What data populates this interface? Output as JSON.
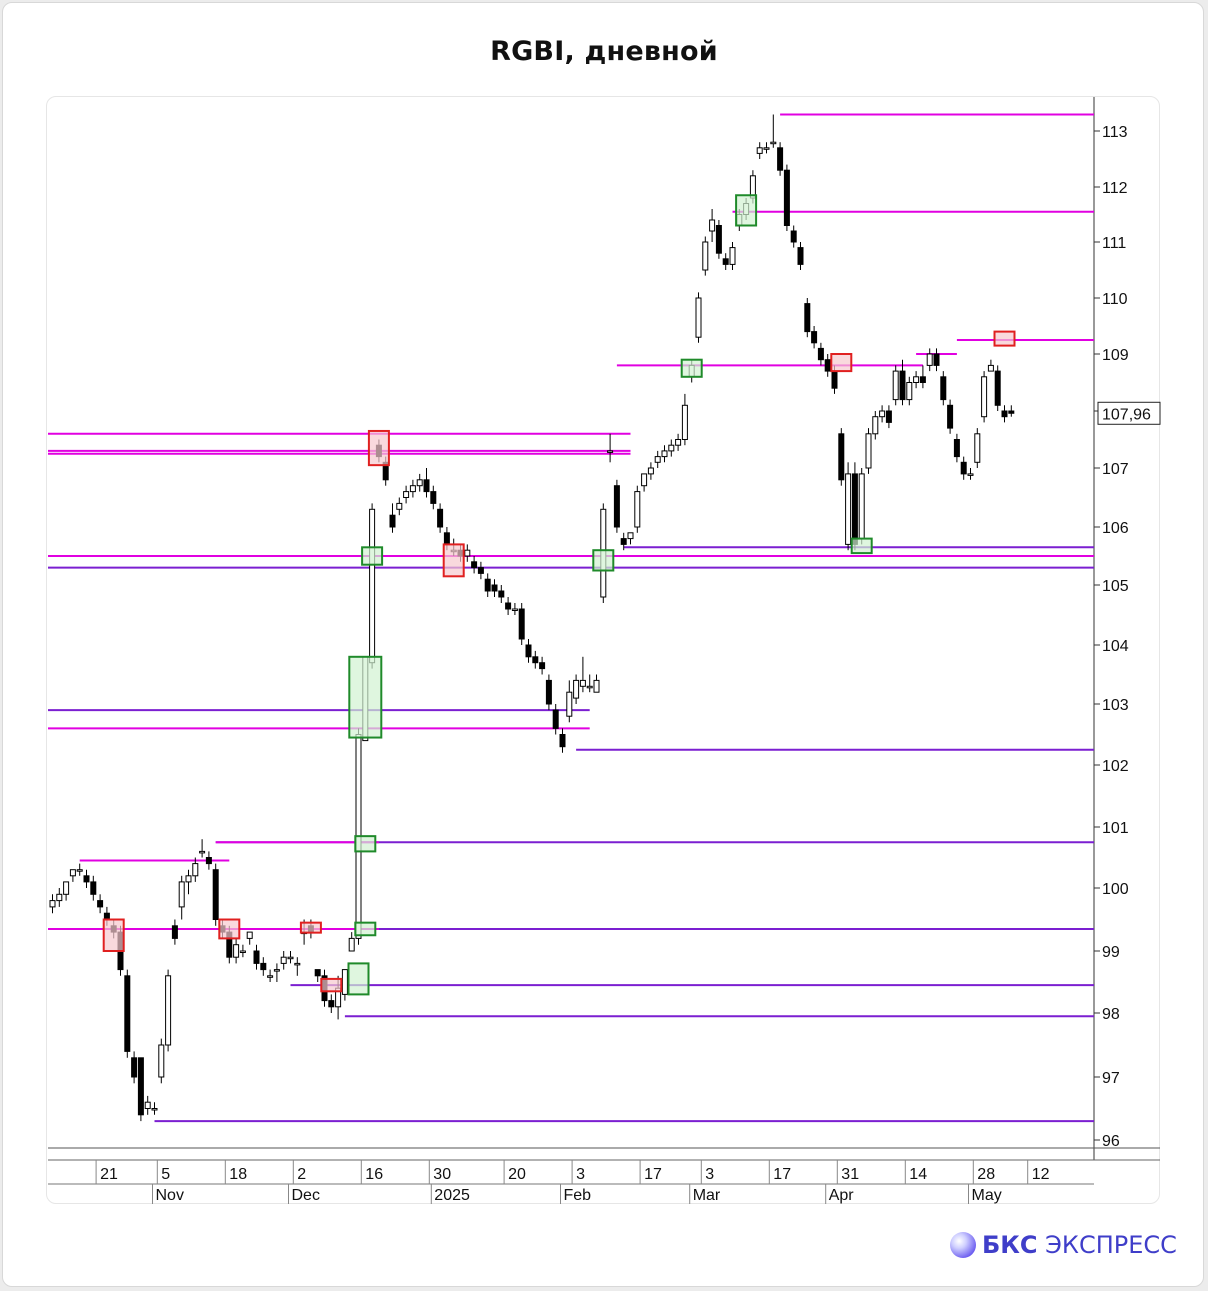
{
  "header": {
    "title": "RGBI, дневной"
  },
  "brand": {
    "bold": "БКС",
    "rest": " ЭКСПРЕСС"
  },
  "colors": {
    "level_magenta": "#e100e1",
    "level_purple": "#7b1fd1",
    "box_red": "#e02020",
    "box_red_fill": "#f6c9cf",
    "box_green": "#1f8a2a",
    "box_green_fill": "#d2f2d2",
    "candle": "#000000"
  },
  "chart_data": {
    "type": "candlestick",
    "title": "RGBI, дневной",
    "ylim": [
      95.9,
      113.4
    ],
    "y_ticks": [
      96,
      97,
      98,
      99,
      100,
      101,
      102,
      103,
      104,
      105,
      106,
      107,
      108,
      109,
      110,
      111,
      112,
      113
    ],
    "last_price_label": "107,96",
    "x_day_ticks": [
      "21",
      "5",
      "18",
      "2",
      "16",
      "30",
      "20",
      "3",
      "17",
      "3",
      "17",
      "31",
      "14",
      "28",
      "12"
    ],
    "x_month_labels": [
      "Nov",
      "Dec",
      "2025",
      "Feb",
      "Mar",
      "Apr",
      "May"
    ],
    "series": [
      {
        "type": "ohlc",
        "values": [
          [
            99.7,
            99.9,
            99.6,
            99.8
          ],
          [
            99.8,
            100.0,
            99.7,
            99.9
          ],
          [
            99.9,
            100.1,
            99.8,
            100.1
          ],
          [
            100.2,
            100.3,
            100.1,
            100.3
          ],
          [
            100.3,
            100.4,
            100.2,
            100.3
          ],
          [
            100.2,
            100.3,
            100.0,
            100.1
          ],
          [
            100.1,
            100.2,
            99.8,
            99.9
          ],
          [
            99.8,
            99.9,
            99.6,
            99.7
          ],
          [
            99.6,
            99.7,
            99.4,
            99.5
          ],
          [
            99.4,
            99.5,
            99.2,
            99.3
          ],
          [
            99.3,
            99.4,
            98.6,
            98.7
          ],
          [
            98.6,
            98.7,
            97.3,
            97.4
          ],
          [
            97.3,
            97.4,
            96.9,
            97.0
          ],
          [
            97.3,
            97.3,
            96.3,
            96.4
          ],
          [
            96.5,
            96.7,
            96.4,
            96.6
          ],
          [
            96.5,
            96.6,
            96.4,
            96.5
          ],
          [
            97.0,
            97.6,
            96.9,
            97.5
          ],
          [
            97.5,
            98.7,
            97.4,
            98.6
          ],
          [
            99.4,
            99.5,
            99.1,
            99.2
          ],
          [
            99.7,
            100.2,
            99.5,
            100.1
          ],
          [
            100.1,
            100.3,
            99.9,
            100.2
          ],
          [
            100.2,
            100.5,
            100.1,
            100.4
          ],
          [
            100.6,
            100.8,
            100.5,
            100.6
          ],
          [
            100.5,
            100.6,
            100.3,
            100.4
          ],
          [
            100.3,
            100.4,
            99.4,
            99.5
          ],
          [
            99.4,
            99.5,
            99.2,
            99.3
          ],
          [
            99.3,
            99.4,
            98.8,
            98.9
          ],
          [
            98.9,
            99.2,
            98.8,
            99.1
          ],
          [
            99.0,
            99.1,
            98.9,
            99.0
          ],
          [
            99.2,
            99.3,
            99.1,
            99.3
          ],
          [
            99.0,
            99.1,
            98.7,
            98.8
          ],
          [
            98.8,
            98.9,
            98.6,
            98.7
          ],
          [
            98.6,
            98.7,
            98.5,
            98.6
          ],
          [
            98.7,
            98.8,
            98.5,
            98.7
          ],
          [
            98.8,
            99.0,
            98.7,
            98.9
          ],
          [
            98.9,
            99.0,
            98.8,
            98.9
          ],
          [
            98.8,
            98.9,
            98.6,
            98.8
          ],
          [
            99.3,
            99.5,
            99.1,
            99.3
          ],
          [
            99.4,
            99.5,
            99.2,
            99.3
          ],
          [
            98.7,
            98.7,
            98.5,
            98.6
          ],
          [
            98.6,
            98.7,
            98.1,
            98.2
          ],
          [
            98.2,
            98.3,
            98.0,
            98.1
          ],
          [
            98.1,
            98.6,
            97.9,
            98.4
          ],
          [
            98.3,
            98.7,
            98.2,
            98.7
          ],
          [
            99.0,
            99.3,
            99.0,
            99.2
          ],
          [
            99.2,
            102.6,
            99.1,
            102.5
          ],
          [
            102.4,
            103.8,
            102.4,
            103.8
          ],
          [
            103.7,
            106.4,
            103.6,
            106.3
          ],
          [
            107.4,
            107.5,
            107.1,
            107.2
          ],
          [
            107.1,
            107.2,
            106.7,
            106.8
          ],
          [
            106.2,
            106.4,
            105.9,
            106.0
          ],
          [
            106.3,
            106.5,
            106.2,
            106.4
          ],
          [
            106.5,
            106.7,
            106.4,
            106.6
          ],
          [
            106.6,
            106.8,
            106.5,
            106.7
          ],
          [
            106.7,
            106.9,
            106.6,
            106.8
          ],
          [
            106.8,
            107.0,
            106.5,
            106.6
          ],
          [
            106.6,
            106.7,
            106.3,
            106.4
          ],
          [
            106.3,
            106.4,
            105.9,
            106.0
          ],
          [
            105.9,
            106.0,
            105.6,
            105.7
          ],
          [
            105.6,
            105.8,
            105.5,
            105.6
          ],
          [
            105.6,
            105.7,
            105.4,
            105.5
          ],
          [
            105.5,
            105.7,
            105.4,
            105.6
          ],
          [
            105.4,
            105.5,
            105.2,
            105.3
          ],
          [
            105.3,
            105.4,
            105.1,
            105.2
          ],
          [
            105.1,
            105.2,
            104.8,
            104.9
          ],
          [
            105.0,
            105.1,
            104.8,
            104.9
          ],
          [
            104.9,
            105.0,
            104.7,
            104.8
          ],
          [
            104.7,
            104.8,
            104.5,
            104.6
          ],
          [
            104.6,
            104.7,
            104.5,
            104.6
          ],
          [
            104.6,
            104.7,
            104.0,
            104.1
          ],
          [
            104.0,
            104.1,
            103.7,
            103.8
          ],
          [
            103.8,
            103.9,
            103.6,
            103.7
          ],
          [
            103.7,
            103.8,
            103.5,
            103.6
          ],
          [
            103.4,
            103.5,
            102.9,
            103.0
          ],
          [
            102.9,
            103.0,
            102.5,
            102.6
          ],
          [
            102.5,
            102.6,
            102.2,
            102.3
          ],
          [
            102.8,
            103.4,
            102.7,
            103.2
          ],
          [
            103.1,
            103.5,
            103.0,
            103.4
          ],
          [
            103.3,
            103.8,
            103.2,
            103.4
          ],
          [
            103.3,
            103.5,
            103.2,
            103.3
          ],
          [
            103.2,
            103.5,
            103.2,
            103.4
          ],
          [
            104.8,
            106.4,
            104.7,
            106.3
          ],
          [
            107.3,
            107.6,
            107.1,
            107.3
          ],
          [
            106.7,
            106.8,
            105.9,
            106.0
          ],
          [
            105.8,
            105.9,
            105.6,
            105.7
          ],
          [
            105.8,
            105.9,
            105.7,
            105.9
          ],
          [
            106.0,
            106.7,
            105.9,
            106.6
          ],
          [
            106.7,
            106.9,
            106.6,
            106.9
          ],
          [
            106.9,
            107.1,
            106.8,
            107.0
          ],
          [
            107.1,
            107.3,
            107.0,
            107.2
          ],
          [
            107.2,
            107.4,
            107.1,
            107.3
          ],
          [
            107.3,
            107.5,
            107.2,
            107.4
          ],
          [
            107.4,
            107.6,
            107.3,
            107.5
          ],
          [
            107.5,
            108.3,
            107.4,
            108.1
          ],
          [
            108.6,
            108.9,
            108.5,
            108.8
          ],
          [
            109.3,
            110.1,
            109.2,
            110.0
          ],
          [
            110.5,
            111.1,
            110.4,
            111.0
          ],
          [
            111.2,
            111.6,
            111.0,
            111.4
          ],
          [
            111.3,
            111.4,
            110.7,
            110.8
          ],
          [
            110.7,
            110.8,
            110.5,
            110.6
          ],
          [
            110.6,
            111.0,
            110.5,
            110.9
          ],
          [
            111.3,
            111.6,
            111.2,
            111.5
          ],
          [
            111.5,
            111.8,
            111.4,
            111.7
          ],
          [
            111.8,
            112.3,
            111.7,
            112.2
          ],
          [
            112.6,
            112.8,
            112.5,
            112.7
          ],
          [
            112.7,
            112.8,
            112.6,
            112.7
          ],
          [
            112.8,
            113.3,
            112.7,
            112.8
          ],
          [
            112.7,
            112.8,
            112.2,
            112.3
          ],
          [
            112.3,
            112.4,
            111.2,
            111.3
          ],
          [
            111.2,
            111.3,
            110.9,
            111.0
          ],
          [
            110.9,
            111.0,
            110.5,
            110.6
          ],
          [
            109.9,
            110.0,
            109.3,
            109.4
          ],
          [
            109.4,
            109.5,
            109.1,
            109.2
          ],
          [
            109.1,
            109.2,
            108.8,
            108.9
          ],
          [
            108.9,
            109.0,
            108.6,
            108.7
          ],
          [
            108.7,
            108.8,
            108.3,
            108.4
          ],
          [
            107.6,
            107.7,
            106.7,
            106.8
          ],
          [
            105.7,
            107.1,
            105.6,
            106.9
          ],
          [
            106.9,
            107.1,
            105.6,
            105.7
          ],
          [
            105.8,
            107.0,
            105.7,
            106.9
          ],
          [
            107.0,
            107.7,
            106.9,
            107.6
          ],
          [
            107.6,
            108.0,
            107.5,
            107.9
          ],
          [
            107.9,
            108.1,
            107.8,
            108.0
          ],
          [
            108.0,
            108.1,
            107.7,
            107.8
          ],
          [
            108.2,
            108.8,
            108.1,
            108.7
          ],
          [
            108.7,
            108.9,
            108.1,
            108.2
          ],
          [
            108.2,
            108.6,
            108.1,
            108.5
          ],
          [
            108.5,
            108.7,
            108.4,
            108.6
          ],
          [
            108.6,
            108.8,
            108.4,
            108.5
          ],
          [
            108.8,
            109.1,
            108.7,
            109.0
          ],
          [
            109.0,
            109.1,
            108.7,
            108.8
          ],
          [
            108.6,
            108.7,
            108.1,
            108.2
          ],
          [
            108.1,
            108.2,
            107.6,
            107.7
          ],
          [
            107.5,
            107.6,
            107.1,
            107.2
          ],
          [
            107.1,
            107.2,
            106.8,
            106.9
          ],
          [
            106.9,
            107.0,
            106.8,
            106.9
          ],
          [
            107.1,
            107.7,
            107.0,
            107.6
          ],
          [
            107.9,
            108.7,
            107.8,
            108.6
          ],
          [
            108.7,
            108.9,
            108.7,
            108.8
          ],
          [
            108.7,
            108.8,
            108.0,
            108.1
          ],
          [
            108.0,
            108.1,
            107.8,
            107.9
          ],
          [
            108.0,
            108.1,
            107.9,
            107.96
          ]
        ]
      }
    ],
    "levels": [
      {
        "price": 113.3,
        "from": 107,
        "color": "magenta"
      },
      {
        "price": 111.55,
        "from": 100,
        "color": "magenta"
      },
      {
        "price": 109.25,
        "from": 133,
        "color": "magenta"
      },
      {
        "price": 108.8,
        "from": 83,
        "to": 128,
        "color": "magenta"
      },
      {
        "price": 109.0,
        "from": 127,
        "to": 133,
        "color": "magenta"
      },
      {
        "price": 107.6,
        "from": 0,
        "to": 85,
        "color": "magenta"
      },
      {
        "price": 107.3,
        "from": 0,
        "to": 85,
        "color": "magenta"
      },
      {
        "price": 107.25,
        "from": 0,
        "to": 85,
        "color": "magenta"
      },
      {
        "price": 105.5,
        "from": 0,
        "color": "magenta"
      },
      {
        "price": 105.3,
        "from": 0,
        "color": "purple"
      },
      {
        "price": 105.65,
        "from": 84,
        "color": "purple"
      },
      {
        "price": 102.9,
        "from": 0,
        "to": 79,
        "color": "purple"
      },
      {
        "price": 102.6,
        "from": 0,
        "to": 79,
        "color": "magenta"
      },
      {
        "price": 102.25,
        "from": 77,
        "color": "purple"
      },
      {
        "price": 100.75,
        "from": 24,
        "color": "purple"
      },
      {
        "price": 100.75,
        "from": 24,
        "to": 48,
        "color": "magenta"
      },
      {
        "price": 100.45,
        "from": 4,
        "to": 26,
        "color": "magenta"
      },
      {
        "price": 99.35,
        "from": 0,
        "color": "purple"
      },
      {
        "price": 99.35,
        "from": 0,
        "to": 48,
        "color": "magenta"
      },
      {
        "price": 98.45,
        "from": 35,
        "color": "purple"
      },
      {
        "price": 97.95,
        "from": 43,
        "color": "purple"
      },
      {
        "price": 96.3,
        "from": 15,
        "color": "purple"
      }
    ],
    "boxes": [
      {
        "i": 9,
        "lo": 99.0,
        "hi": 99.5,
        "kind": "red"
      },
      {
        "i": 26,
        "lo": 99.2,
        "hi": 99.5,
        "kind": "red"
      },
      {
        "i": 38,
        "lo": 99.3,
        "hi": 99.45,
        "kind": "red"
      },
      {
        "i": 41,
        "lo": 98.35,
        "hi": 98.55,
        "kind": "red"
      },
      {
        "i": 45,
        "lo": 98.3,
        "hi": 98.8,
        "kind": "green"
      },
      {
        "i": 46,
        "lo": 99.25,
        "hi": 99.45,
        "kind": "green"
      },
      {
        "i": 46,
        "lo": 100.6,
        "hi": 100.85,
        "kind": "green"
      },
      {
        "i": 46,
        "lo": 102.45,
        "hi": 103.8,
        "kind": "green"
      },
      {
        "i": 47,
        "lo": 105.35,
        "hi": 105.65,
        "kind": "green"
      },
      {
        "i": 48,
        "lo": 107.05,
        "hi": 107.65,
        "kind": "red"
      },
      {
        "i": 59,
        "lo": 105.15,
        "hi": 105.7,
        "kind": "red"
      },
      {
        "i": 81,
        "lo": 105.25,
        "hi": 105.6,
        "kind": "green"
      },
      {
        "i": 94,
        "lo": 108.6,
        "hi": 108.9,
        "kind": "green"
      },
      {
        "i": 102,
        "lo": 111.3,
        "hi": 111.85,
        "kind": "green"
      },
      {
        "i": 116,
        "lo": 108.7,
        "hi": 109.0,
        "kind": "red"
      },
      {
        "i": 119,
        "lo": 105.55,
        "hi": 105.8,
        "kind": "green"
      },
      {
        "i": 140,
        "lo": 109.15,
        "hi": 109.4,
        "kind": "red"
      }
    ]
  }
}
